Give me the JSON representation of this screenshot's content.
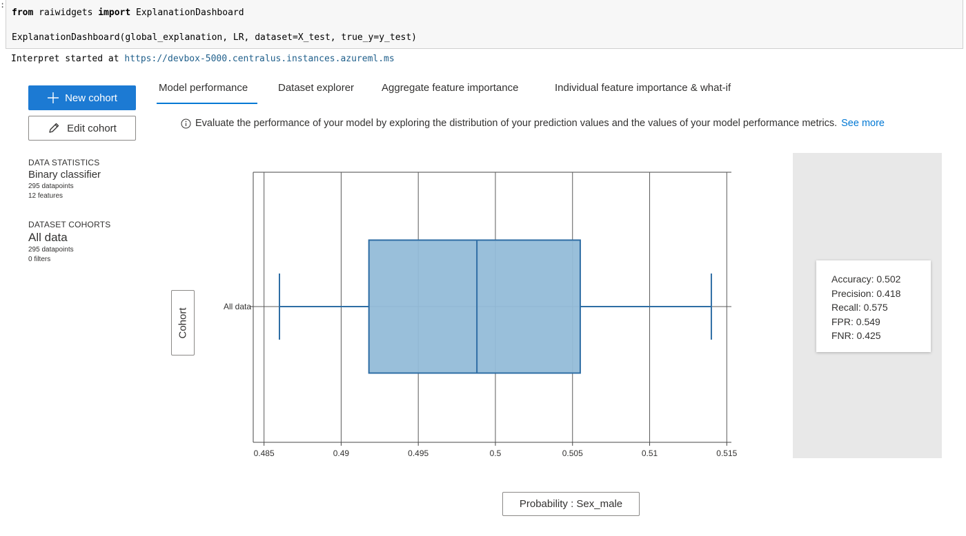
{
  "notebook": {
    "code": {
      "line1_kw_from": "from",
      "line1_module": " raiwidgets ",
      "line1_kw_import": "import",
      "line1_name": " ExplanationDashboard",
      "line2": "ExplanationDashboard(global_explanation, LR, dataset=X_test, true_y=y_test)"
    },
    "output": {
      "prefix": "Interpret started at ",
      "url": "https://devbox-5000.centralus.instances.azureml.ms"
    }
  },
  "sidebar": {
    "new_cohort_label": "New cohort",
    "edit_cohort_label": "Edit cohort",
    "data_statistics": {
      "heading": "DATA STATISTICS",
      "model_type": "Binary classifier",
      "datapoints": "295 datapoints",
      "features": "12 features"
    },
    "dataset_cohorts": {
      "heading": "DATASET COHORTS",
      "name": "All data",
      "datapoints": "295 datapoints",
      "filters": "0 filters"
    }
  },
  "tabs": [
    {
      "label": "Model performance",
      "active": true
    },
    {
      "label": "Dataset explorer",
      "active": false
    },
    {
      "label": "Aggregate feature importance",
      "active": false
    },
    {
      "label": "Individual feature importance & what-if",
      "active": false
    }
  ],
  "info": {
    "text": "Evaluate the performance of your model by exploring the distribution of your prediction values and the values of your model performance metrics.",
    "link": "See more"
  },
  "yaxis_button_label": "Cohort",
  "xaxis_button_label": "Probability : Sex_male",
  "metrics": [
    "Accuracy: 0.502",
    "Precision: 0.418",
    "Recall: 0.575",
    "FPR: 0.549",
    "FNR: 0.425"
  ],
  "colors": {
    "accent": "#0078d4",
    "primary_button": "#1c7ad3",
    "box_fill": "#93bcd8",
    "box_stroke": "#2e6da4"
  },
  "chart_data": {
    "type": "box",
    "orientation": "horizontal",
    "categories": [
      "All data"
    ],
    "series": [
      {
        "category": "All data",
        "min": 0.486,
        "q1": 0.4918,
        "median": 0.4988,
        "q3": 0.5055,
        "max": 0.514
      }
    ],
    "xlim": [
      0.4843,
      0.5153
    ],
    "xticks": [
      0.485,
      0.49,
      0.495,
      0.5,
      0.505,
      0.51,
      0.515
    ],
    "xtick_labels": [
      "0.485",
      "0.49",
      "0.495",
      "0.5",
      "0.505",
      "0.51",
      "0.515"
    ],
    "grid": true
  }
}
